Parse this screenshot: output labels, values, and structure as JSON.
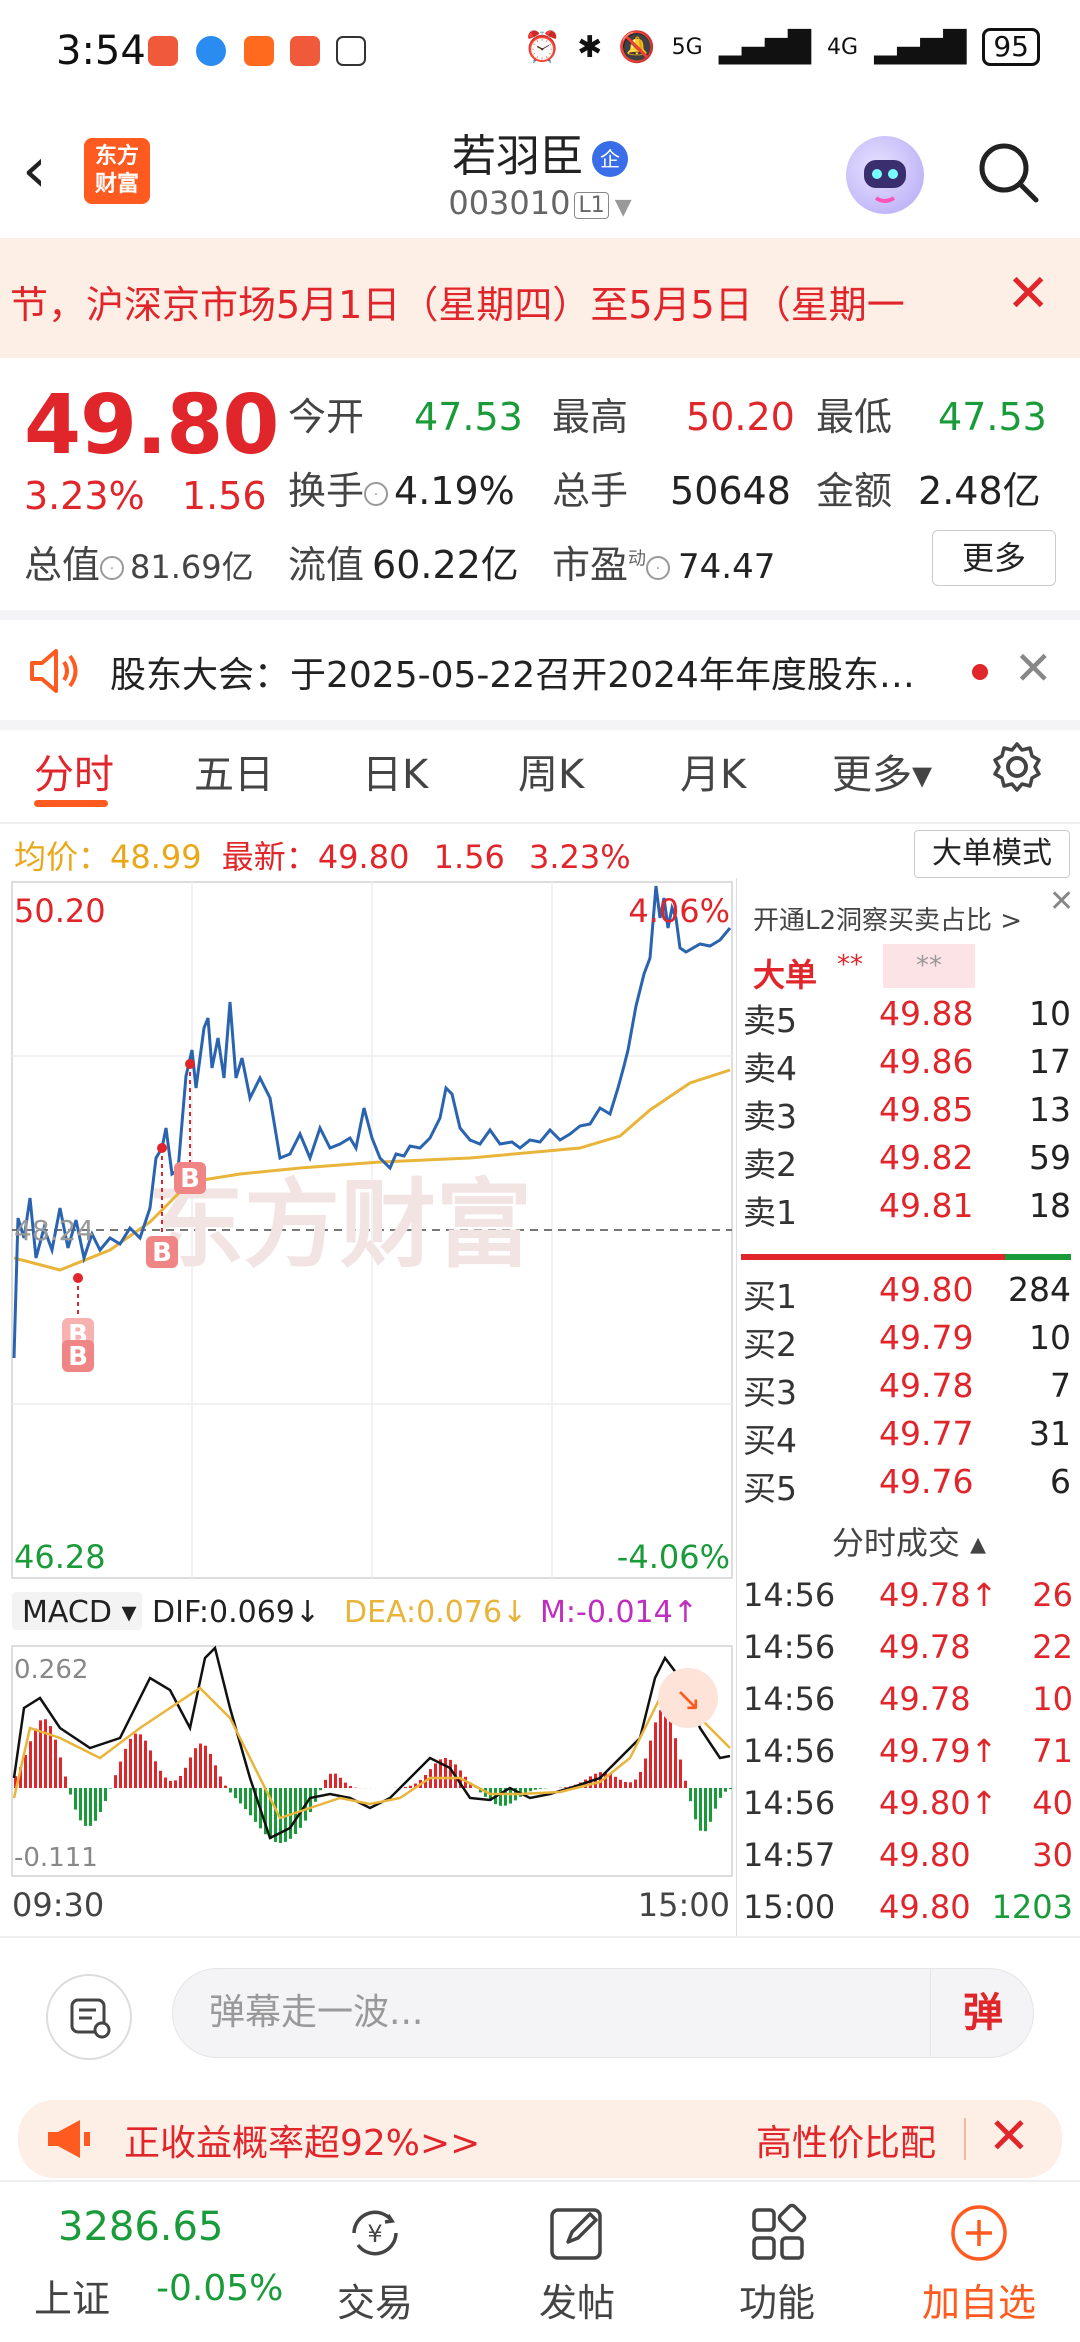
{
  "status_bar": {
    "time": "3:54",
    "battery": "95",
    "net1": "5G",
    "net2": "4G"
  },
  "header": {
    "stock_name": "若羽臣",
    "verified_badge": "企",
    "stock_code": "003010",
    "level": "L1",
    "logo_text_1": "东方",
    "logo_text_2": "财富"
  },
  "notice": {
    "text": "节，沪深京市场5月1日（星期四）至5月5日（星期一",
    "close": "✕"
  },
  "quote": {
    "price": "49.80",
    "change_pct": "3.23%",
    "change_amt": "1.56",
    "open_label": "今开",
    "open": "47.53",
    "high_label": "最高",
    "high": "50.20",
    "low_label": "最低",
    "low": "47.53",
    "turnover_label": "换手",
    "turnover": "4.19%",
    "volume_label": "总手",
    "volume": "50648",
    "amount_label": "金额",
    "amount": "2.48亿",
    "market_cap_label": "总值",
    "market_cap": "81.69亿",
    "float_cap_label": "流值",
    "float_cap": "60.22亿",
    "pe_label": "市盈",
    "pe_sup": "动",
    "pe": "74.47",
    "more_label": "更多"
  },
  "announcement": {
    "text": "股东大会：于2025-05-22召开2024年年度股东…"
  },
  "chart_tabs": [
    "分时",
    "五日",
    "日K",
    "周K",
    "月K",
    "更多▾"
  ],
  "avg_bar": {
    "avg_label": "均价：",
    "avg": "48.99",
    "latest_label": "最新：",
    "latest": "49.80",
    "chg": "1.56",
    "pct": "3.23%",
    "mode_button": "大单模式"
  },
  "chart_labels": {
    "top_price": "50.20",
    "top_pct": "4.06%",
    "ref_price": "48.24",
    "bottom_price": "46.28",
    "bottom_pct": "-4.06%",
    "watermark": "东方财富",
    "macd_label": "MACD ▾",
    "dif": "DIF:0.069↓",
    "dea": "DEA:0.076↓",
    "m": "M:-0.014↑",
    "macd_top": "0.262",
    "macd_bottom": "-0.111",
    "time_start": "09:30",
    "time_end": "15:00",
    "buy_marker": "B"
  },
  "chart_data": {
    "type": "line",
    "y_range": [
      46.28,
      50.2
    ],
    "ref_price": 48.24,
    "x_range": [
      "09:30",
      "15:00"
    ],
    "series": [],
    "macd_range": [
      -0.111,
      0.262
    ]
  },
  "order_book": {
    "promo": "开通L2洞察买卖占比 >",
    "big_order_label": "大单",
    "stars1": "**",
    "stars2": "**",
    "sell": [
      {
        "label": "卖5",
        "price": "49.88",
        "vol": "10"
      },
      {
        "label": "卖4",
        "price": "49.86",
        "vol": "17"
      },
      {
        "label": "卖3",
        "price": "49.85",
        "vol": "13"
      },
      {
        "label": "卖2",
        "price": "49.82",
        "vol": "59"
      },
      {
        "label": "卖1",
        "price": "49.81",
        "vol": "18"
      }
    ],
    "buy": [
      {
        "label": "买1",
        "price": "49.80",
        "vol": "284"
      },
      {
        "label": "买2",
        "price": "49.79",
        "vol": "10"
      },
      {
        "label": "买3",
        "price": "49.78",
        "vol": "7"
      },
      {
        "label": "买4",
        "price": "49.77",
        "vol": "31"
      },
      {
        "label": "买5",
        "price": "49.76",
        "vol": "6"
      }
    ],
    "ticks_header": "分时成交 ▴",
    "ticks": [
      {
        "time": "14:56",
        "price": "49.78↑",
        "vol": "26"
      },
      {
        "time": "14:56",
        "price": "49.78",
        "vol": "22"
      },
      {
        "time": "14:56",
        "price": "49.78",
        "vol": "10"
      },
      {
        "time": "14:56",
        "price": "49.79↑",
        "vol": "71"
      },
      {
        "time": "14:56",
        "price": "49.80↑",
        "vol": "40"
      },
      {
        "time": "14:57",
        "price": "49.80",
        "vol": "30"
      },
      {
        "time": "15:00",
        "price": "49.80",
        "vol": "1203"
      }
    ]
  },
  "comment_bar": {
    "placeholder": "弹幕走一波...",
    "barrage_button": "弹"
  },
  "promo_banner": {
    "text": "正收益概率超92%>>",
    "right_text": "高性价比配",
    "close": "✕"
  },
  "bottom_nav": {
    "index_value": "3286.65",
    "index_name": "上证",
    "index_change": "-0.05%",
    "items": [
      "交易",
      "发帖",
      "功能",
      "加自选"
    ]
  },
  "colors": {
    "up": "#e0262b",
    "down": "#1a9b3a",
    "accent": "#ff5a1f",
    "price_line": "#2a63b0",
    "avg_line": "#e9b43a"
  }
}
